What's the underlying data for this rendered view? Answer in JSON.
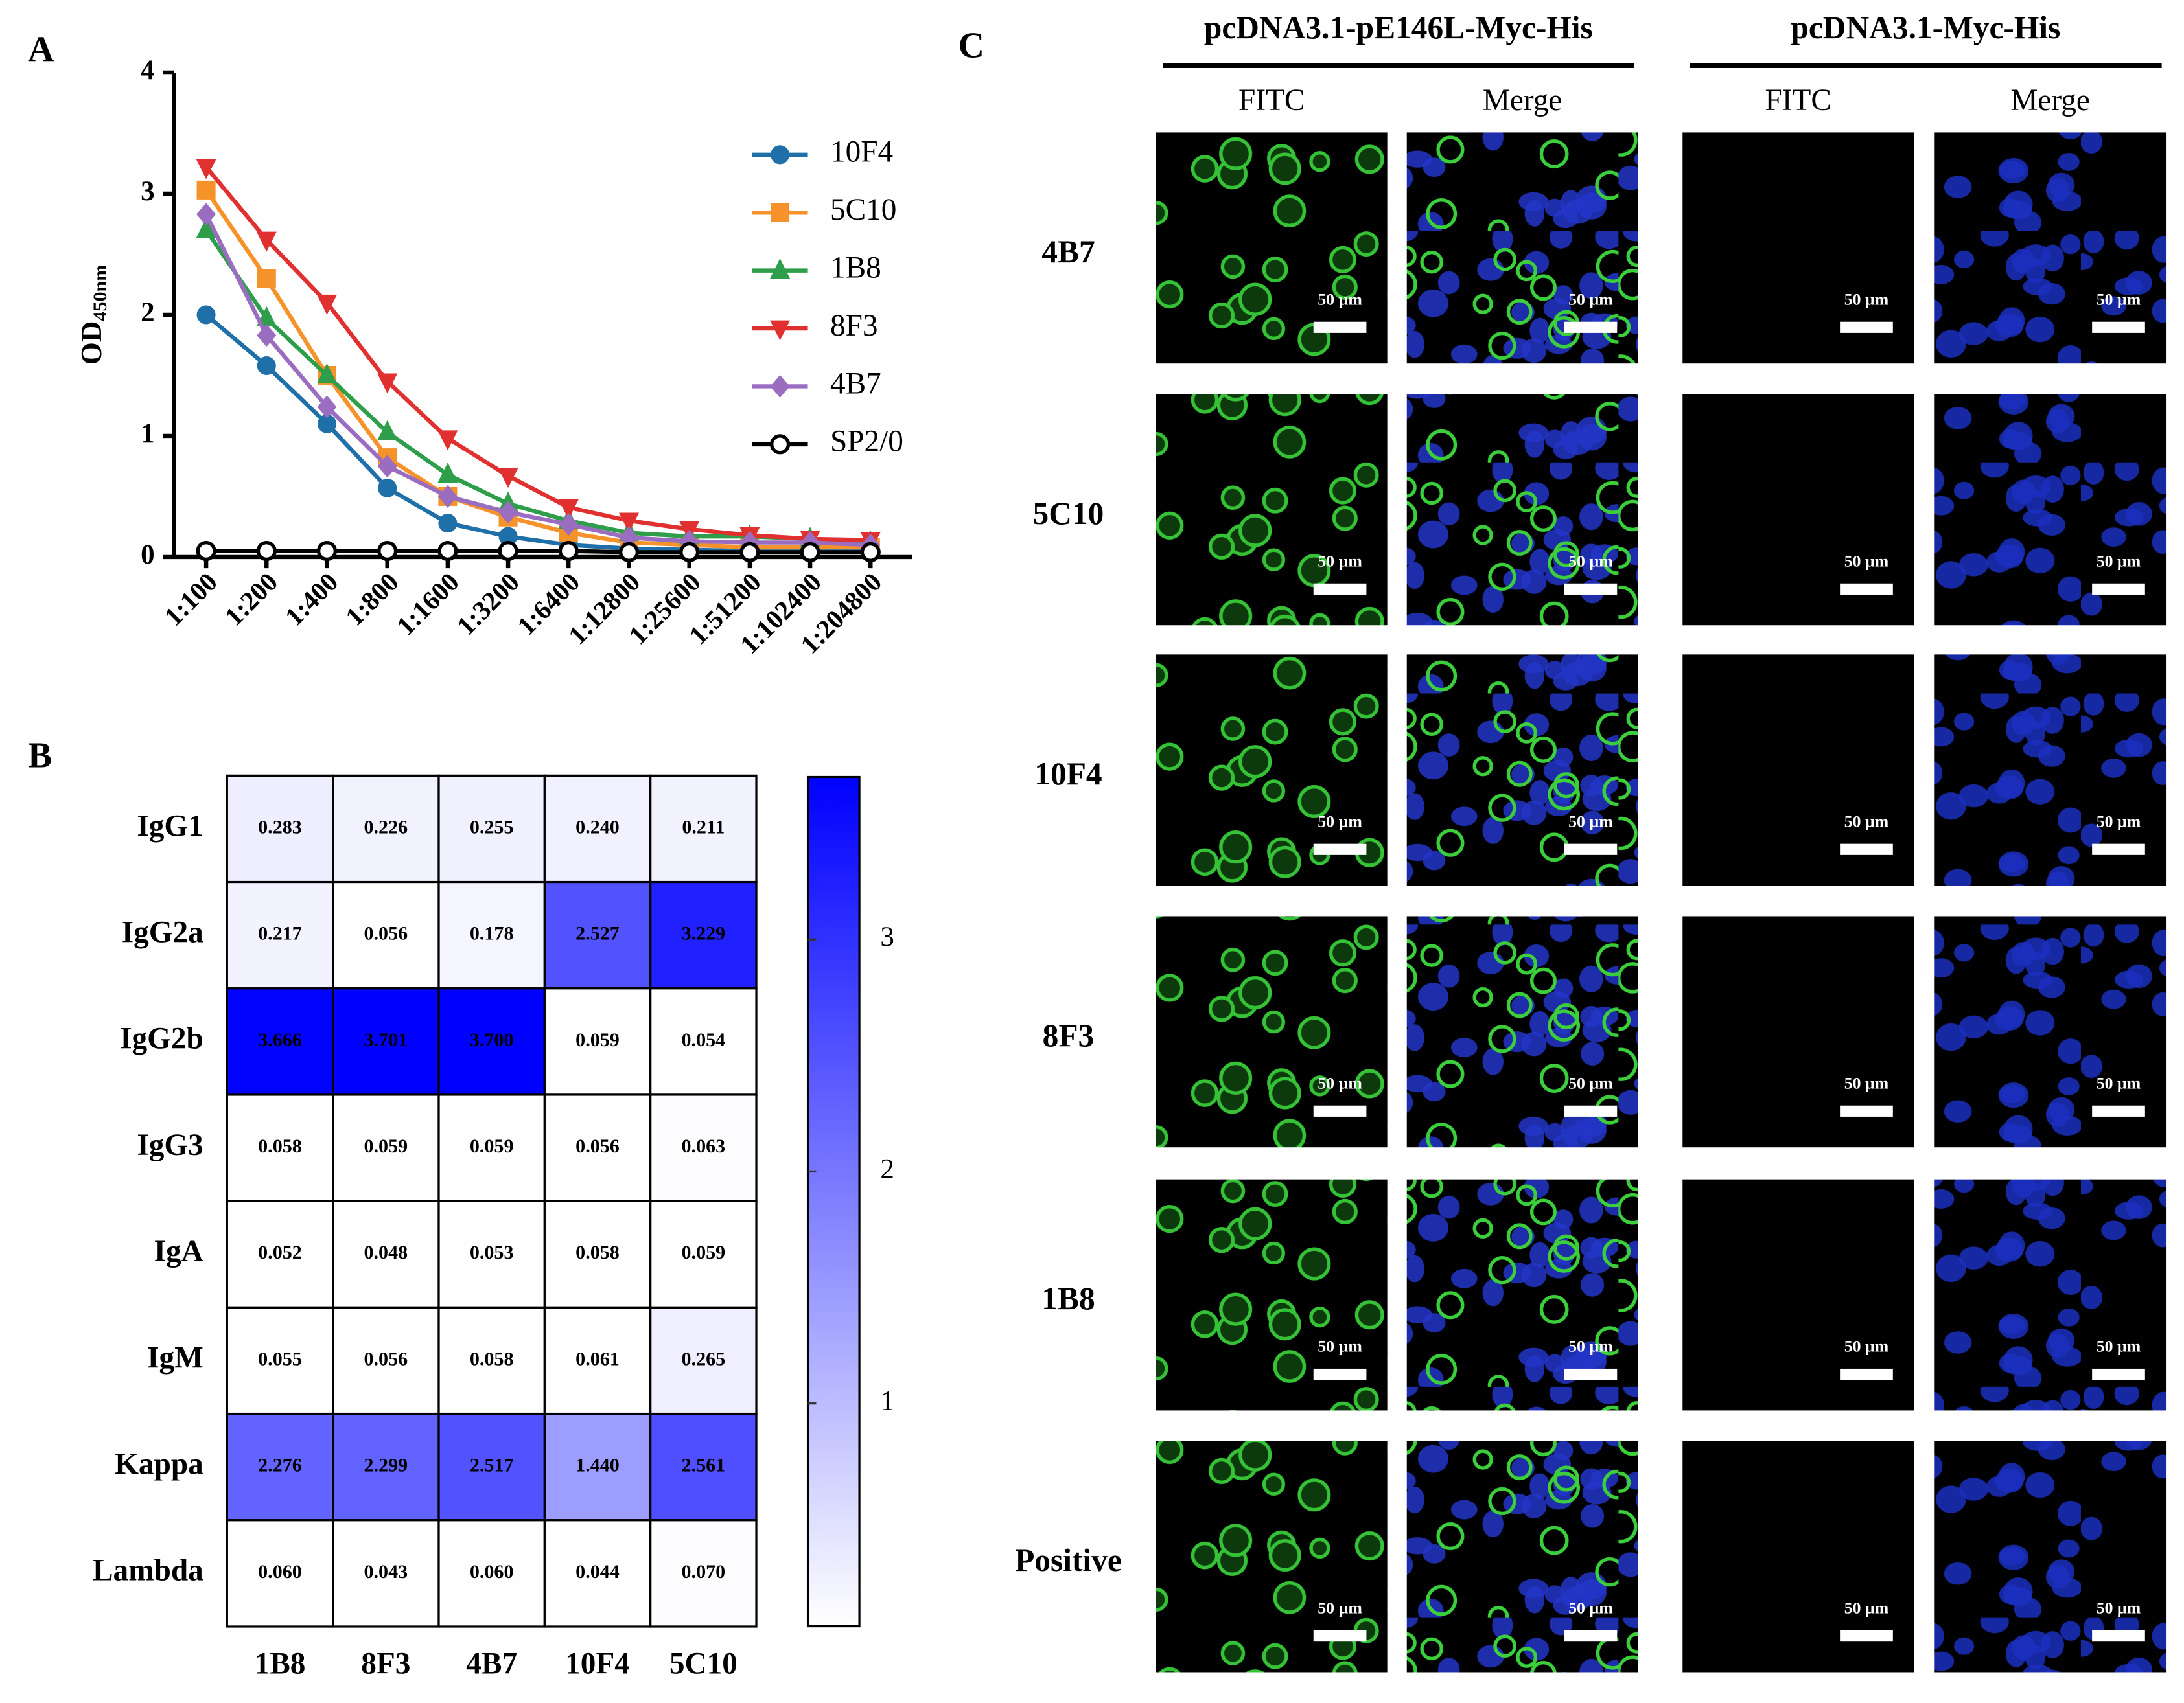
{
  "panel_labels": [
    "A",
    "B",
    "C"
  ],
  "chart_data": [
    {
      "type": "line",
      "ylabel": "OD",
      "ylabel_subscript": "450nm",
      "categories": [
        "1:100",
        "1:200",
        "1:400",
        "1:800",
        "1:1600",
        "1:3200",
        "1:6400",
        "1:12800",
        "1:25600",
        "1:51200",
        "1:102400",
        "1:204800"
      ],
      "series": [
        {
          "name": "10F4",
          "color": "#1f6fa8",
          "marker": "circle",
          "values": [
            2.0,
            1.58,
            1.1,
            0.57,
            0.28,
            0.17,
            0.1,
            0.07,
            0.06,
            0.05,
            0.05,
            0.05
          ]
        },
        {
          "name": "5C10",
          "color": "#f5922a",
          "marker": "square",
          "values": [
            3.03,
            2.3,
            1.5,
            0.82,
            0.5,
            0.33,
            0.2,
            0.12,
            0.1,
            0.08,
            0.08,
            0.08
          ]
        },
        {
          "name": "1B8",
          "color": "#2e9e4a",
          "marker": "triangle",
          "values": [
            2.7,
            1.97,
            1.5,
            1.03,
            0.68,
            0.44,
            0.3,
            0.2,
            0.17,
            0.17,
            0.15,
            0.12
          ]
        },
        {
          "name": "8F3",
          "color": "#e03030",
          "marker": "triangle-down",
          "values": [
            3.22,
            2.62,
            2.1,
            1.45,
            0.98,
            0.67,
            0.41,
            0.3,
            0.23,
            0.18,
            0.15,
            0.14
          ]
        },
        {
          "name": "4B7",
          "color": "#9b6dc0",
          "marker": "diamond",
          "values": [
            2.83,
            1.83,
            1.24,
            0.75,
            0.5,
            0.37,
            0.27,
            0.16,
            0.13,
            0.12,
            0.12,
            0.1
          ]
        },
        {
          "name": "SP2/0",
          "color": "#000000",
          "marker": "open-circle",
          "values": [
            0.05,
            0.05,
            0.05,
            0.05,
            0.05,
            0.05,
            0.05,
            0.04,
            0.04,
            0.04,
            0.04,
            0.04
          ]
        }
      ],
      "ylim": [
        0,
        4
      ],
      "yticks": [
        0,
        1,
        2,
        3,
        4
      ],
      "legend": "right"
    },
    {
      "type": "heatmap",
      "rows": [
        "IgG1",
        "IgG2a",
        "IgG2b",
        "IgG3",
        "IgA",
        "IgM",
        "Kappa",
        "Lambda"
      ],
      "columns": [
        "1B8",
        "8F3",
        "4B7",
        "10F4",
        "5C10"
      ],
      "values": [
        [
          0.283,
          0.226,
          0.255,
          0.24,
          0.211
        ],
        [
          0.217,
          0.056,
          0.178,
          2.527,
          3.229
        ],
        [
          3.666,
          3.701,
          3.7,
          0.059,
          0.054
        ],
        [
          0.058,
          0.059,
          0.059,
          0.056,
          0.063
        ],
        [
          0.052,
          0.048,
          0.053,
          0.058,
          0.059
        ],
        [
          0.055,
          0.056,
          0.058,
          0.061,
          0.265
        ],
        [
          2.276,
          2.299,
          2.517,
          1.44,
          2.561
        ],
        [
          0.06,
          0.043,
          0.06,
          0.044,
          0.07
        ]
      ],
      "value_labels": [
        [
          "0.283",
          "0.226",
          "0.255",
          "0.240",
          "0.211"
        ],
        [
          "0.217",
          "0.056",
          "0.178",
          "2.527",
          "3.229"
        ],
        [
          "3.666",
          "3.701",
          "3.700",
          "0.059",
          "0.054"
        ],
        [
          "0.058",
          "0.059",
          "0.059",
          "0.056",
          "0.063"
        ],
        [
          "0.052",
          "0.048",
          "0.053",
          "0.058",
          "0.059"
        ],
        [
          "0.055",
          "0.056",
          "0.058",
          "0.061",
          "0.265"
        ],
        [
          "2.276",
          "2.299",
          "2.517",
          "1.440",
          "2.561"
        ],
        [
          "0.060",
          "0.043",
          "0.060",
          "0.044",
          "0.070"
        ]
      ],
      "zlim": [
        0.04,
        3.7
      ],
      "colorbar_ticks": [
        1,
        2,
        3
      ],
      "colors": [
        "#ffffff",
        "#0000ff"
      ]
    }
  ],
  "microscopy": {
    "groups": [
      {
        "title": "pcDNA3.1-pE146L-Myc-His",
        "channels": [
          "FITC",
          "Merge"
        ]
      },
      {
        "title": "pcDNA3.1-Myc-His",
        "channels": [
          "FITC",
          "Merge"
        ]
      }
    ],
    "rows": [
      "4B7",
      "5C10",
      "10F4",
      "8F3",
      "1B8",
      "Positive"
    ],
    "scale_label": "50 µm"
  }
}
